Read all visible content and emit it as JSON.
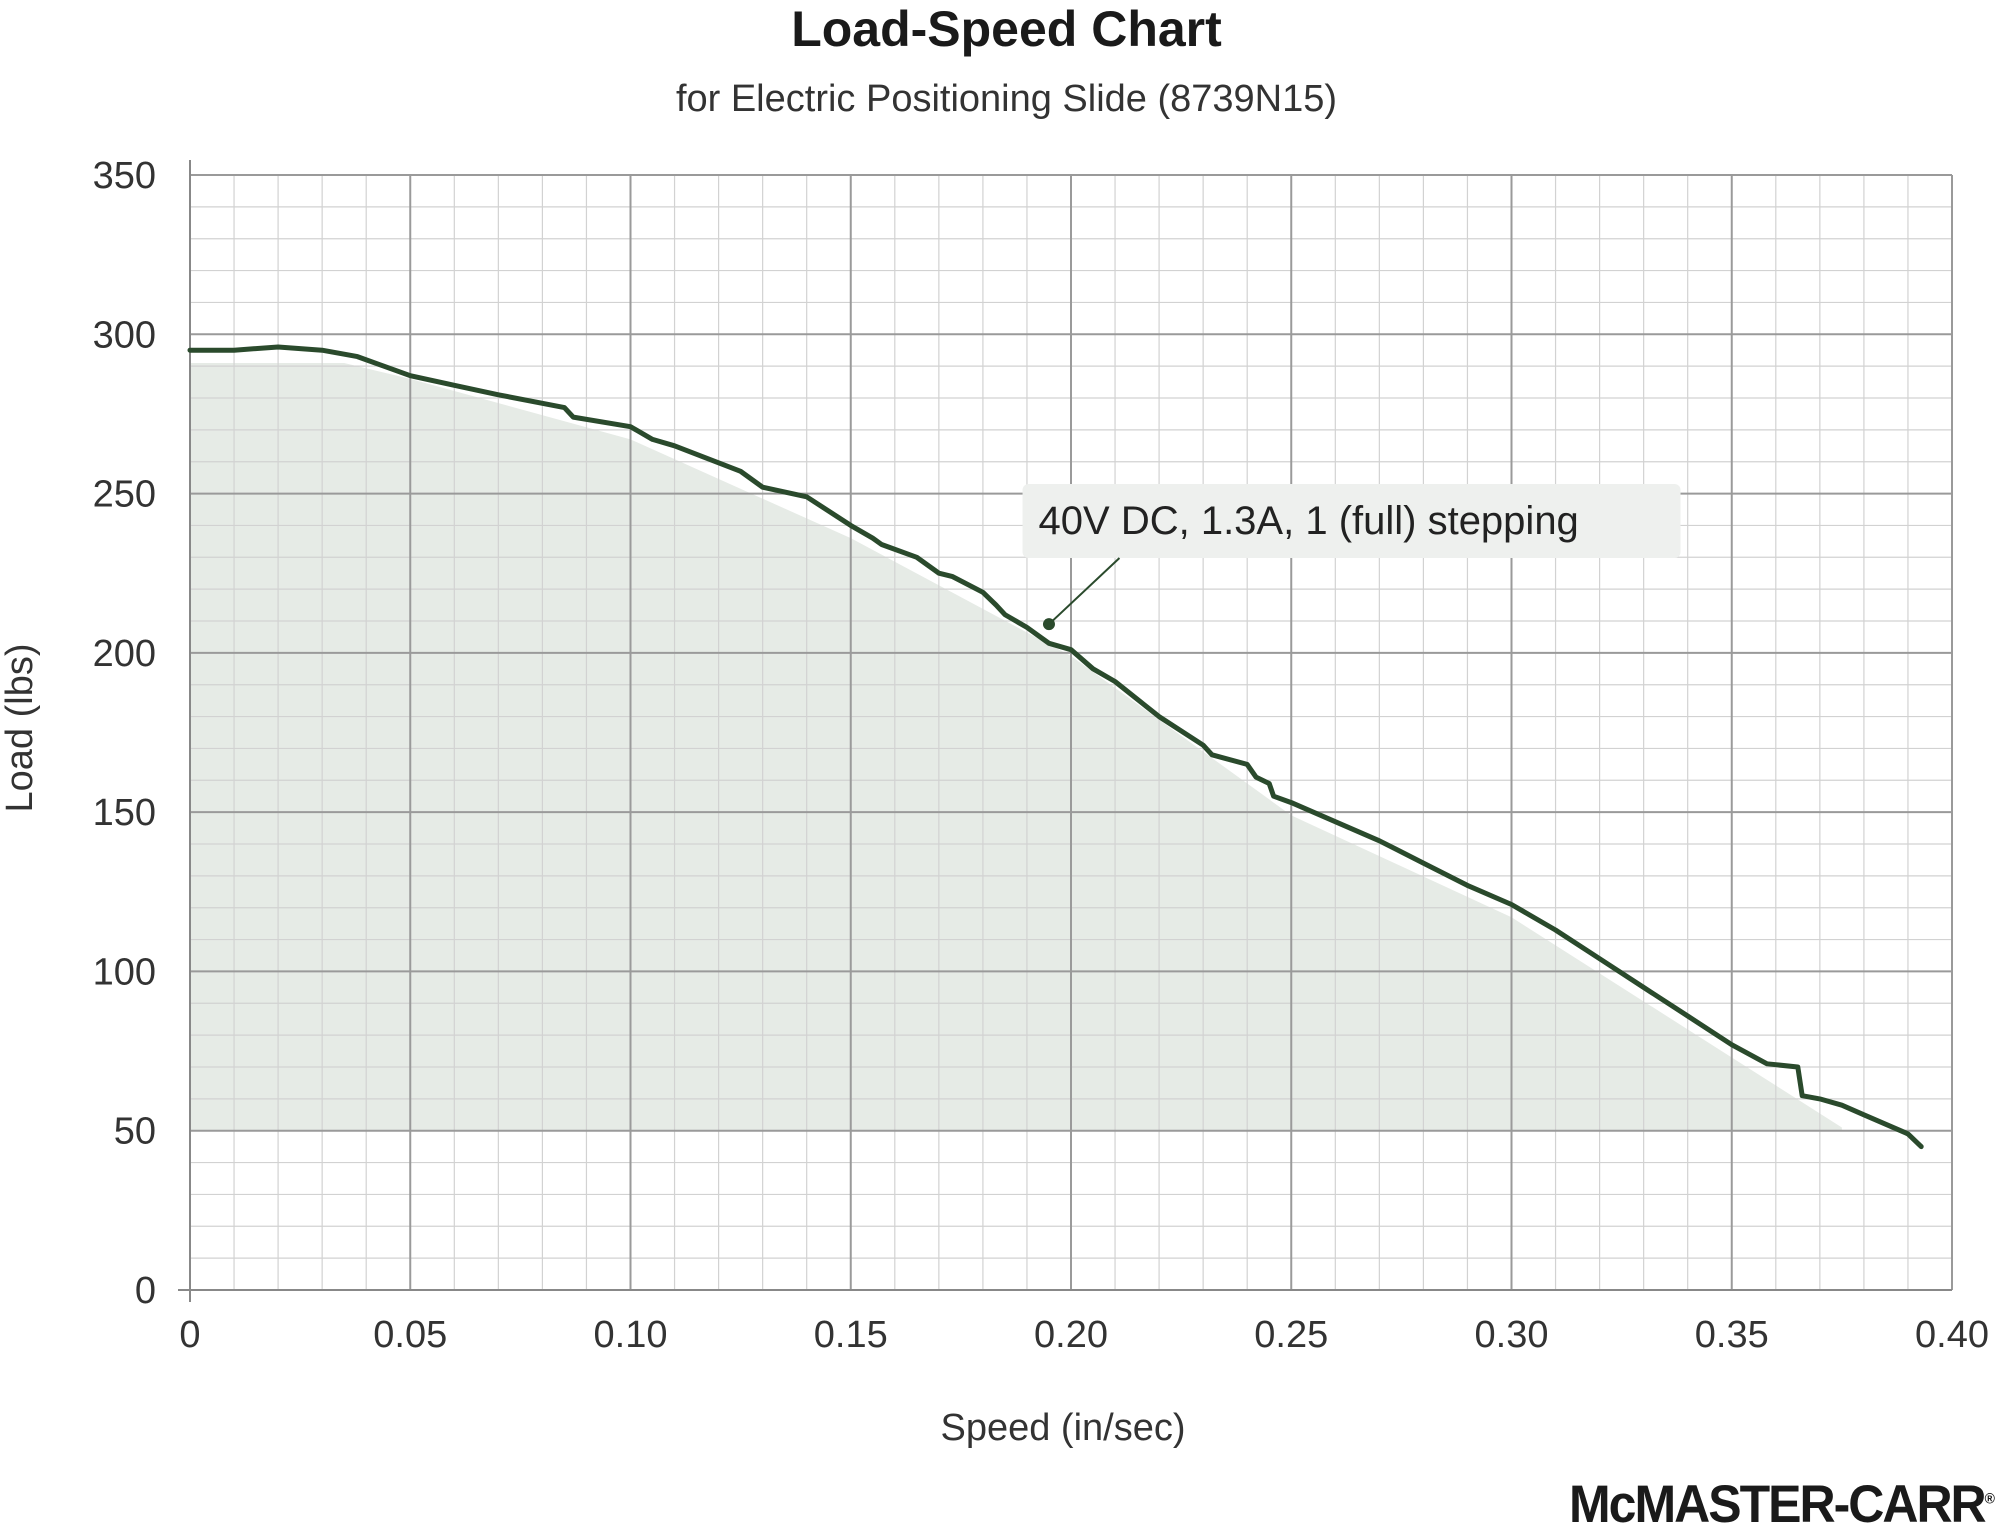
{
  "chart_data": {
    "type": "line",
    "title": "Load-Speed Chart",
    "subtitle": "for Electric Positioning Slide (8739N15)",
    "xlabel": "Speed (in/sec)",
    "ylabel": "Load (lbs)",
    "xlim": [
      0,
      0.4
    ],
    "ylim": [
      0,
      350
    ],
    "x_ticks": [
      "0",
      "0.05",
      "0.10",
      "0.15",
      "0.20",
      "0.25",
      "0.30",
      "0.35",
      "0.40"
    ],
    "y_ticks": [
      "0",
      "50",
      "100",
      "150",
      "200",
      "250",
      "300",
      "350"
    ],
    "grid": true,
    "annotation": "40V DC, 1.3A, 1 (full) stepping",
    "series": [
      {
        "name": "40V DC, 1.3A, 1 (full) stepping",
        "color": "#2a4a2c",
        "x": [
          0,
          0.01,
          0.02,
          0.03,
          0.038,
          0.05,
          0.06,
          0.07,
          0.085,
          0.087,
          0.1,
          0.105,
          0.11,
          0.125,
          0.13,
          0.14,
          0.15,
          0.155,
          0.157,
          0.165,
          0.17,
          0.173,
          0.18,
          0.183,
          0.185,
          0.19,
          0.195,
          0.2,
          0.205,
          0.21,
          0.22,
          0.23,
          0.232,
          0.24,
          0.242,
          0.245,
          0.246,
          0.25,
          0.26,
          0.27,
          0.28,
          0.29,
          0.3,
          0.31,
          0.32,
          0.33,
          0.34,
          0.35,
          0.358,
          0.365,
          0.366,
          0.37,
          0.375,
          0.38,
          0.385,
          0.39,
          0.393
        ],
        "y": [
          295,
          295,
          296,
          295,
          293,
          287,
          284,
          281,
          277,
          274,
          271,
          267,
          265,
          257,
          252,
          249,
          240,
          236,
          234,
          230,
          225,
          224,
          219,
          215,
          212,
          208,
          203,
          201,
          195,
          191,
          180,
          171,
          168,
          165,
          161,
          159,
          155,
          153,
          147,
          141,
          134,
          127,
          121,
          113,
          104,
          95,
          86,
          77,
          71,
          70,
          61,
          60,
          58,
          55,
          52,
          49,
          45
        ]
      }
    ],
    "shaded_region": {
      "x": [
        0,
        0.035,
        0.05,
        0.1,
        0.15,
        0.2,
        0.25,
        0.3,
        0.35,
        0.375
      ],
      "y_top": [
        291,
        291,
        286,
        267,
        236,
        199,
        149,
        117,
        73,
        51
      ],
      "y_bottom": 50,
      "color": "#e6ebe6"
    }
  },
  "brand": {
    "logo_text": "McMASTER-CARR",
    "registered_mark": "®"
  }
}
